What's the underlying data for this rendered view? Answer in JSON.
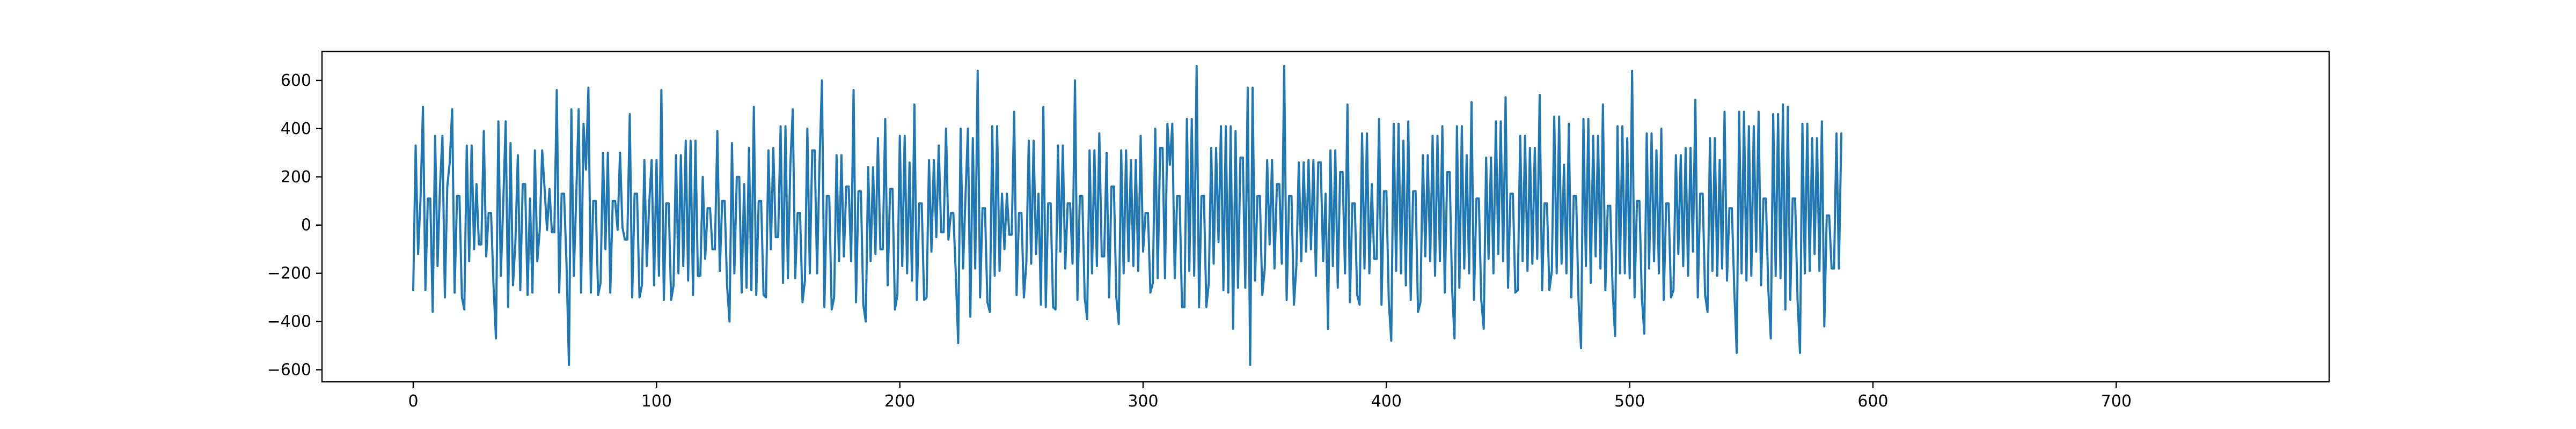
{
  "chart_data": {
    "type": "line",
    "title": "",
    "xlabel": "",
    "ylabel": "",
    "xlim": [
      -37.5,
      787.5
    ],
    "ylim": [
      -650,
      720
    ],
    "grid": false,
    "legend": "none",
    "x_ticks": [
      0,
      100,
      200,
      300,
      400,
      500,
      600,
      700
    ],
    "x_tick_labels": [
      "0",
      "100",
      "200",
      "300",
      "400",
      "500",
      "600",
      "700"
    ],
    "y_ticks": [
      -600,
      -400,
      -200,
      0,
      200,
      400,
      600
    ],
    "y_tick_labels": [
      "−600",
      "−400",
      "−200",
      "0",
      "200",
      "400",
      "600"
    ],
    "series": [
      {
        "color": "#1f77b4",
        "x_start": 0,
        "x_step": 1,
        "values": [
          -270,
          330,
          -120,
          110,
          490,
          -270,
          110,
          110,
          -360,
          370,
          -170,
          160,
          370,
          -300,
          160,
          260,
          480,
          -280,
          120,
          120,
          -300,
          -350,
          330,
          -150,
          330,
          -100,
          170,
          -80,
          -80,
          390,
          -130,
          50,
          50,
          -250,
          -470,
          430,
          -210,
          90,
          430,
          -340,
          340,
          -250,
          -70,
          290,
          -270,
          170,
          170,
          -290,
          110,
          -280,
          310,
          -150,
          -20,
          310,
          150,
          -20,
          150,
          -30,
          -30,
          560,
          -280,
          130,
          130,
          -160,
          -580,
          480,
          -210,
          120,
          480,
          -280,
          420,
          230,
          570,
          -280,
          100,
          100,
          -290,
          -240,
          300,
          -100,
          300,
          -280,
          100,
          100,
          -20,
          300,
          -10,
          -60,
          -60,
          460,
          -300,
          130,
          130,
          -300,
          -250,
          270,
          -170,
          90,
          270,
          -250,
          270,
          -210,
          560,
          -310,
          90,
          90,
          -310,
          -250,
          290,
          -200,
          290,
          -170,
          350,
          -230,
          350,
          -290,
          350,
          -210,
          -210,
          200,
          -140,
          70,
          70,
          -100,
          -100,
          390,
          -190,
          100,
          100,
          -250,
          -400,
          340,
          -200,
          200,
          200,
          -280,
          170,
          -260,
          320,
          -270,
          490,
          -290,
          100,
          100,
          -290,
          -300,
          310,
          -100,
          320,
          -50,
          -50,
          410,
          -240,
          410,
          -220,
          250,
          480,
          -220,
          50,
          50,
          -320,
          -230,
          400,
          -200,
          310,
          310,
          -200,
          260,
          600,
          -340,
          120,
          120,
          -350,
          -300,
          290,
          -150,
          290,
          -130,
          160,
          160,
          -150,
          560,
          -320,
          140,
          140,
          -330,
          -400,
          240,
          -150,
          240,
          -120,
          360,
          -100,
          -100,
          440,
          -250,
          150,
          150,
          -350,
          -290,
          370,
          -170,
          370,
          -200,
          260,
          -230,
          500,
          -310,
          90,
          90,
          -310,
          -300,
          270,
          -110,
          270,
          -50,
          330,
          -30,
          -30,
          400,
          -60,
          50,
          50,
          -200,
          -490,
          400,
          -180,
          120,
          400,
          -380,
          360,
          -180,
          640,
          -300,
          70,
          70,
          -320,
          -360,
          410,
          -210,
          410,
          -190,
          130,
          -100,
          130,
          -40,
          -40,
          470,
          -290,
          50,
          50,
          -300,
          -160,
          350,
          -160,
          350,
          -120,
          130,
          -330,
          490,
          -340,
          90,
          90,
          -340,
          -350,
          330,
          -110,
          330,
          -180,
          90,
          90,
          -160,
          600,
          -310,
          120,
          120,
          -300,
          -390,
          310,
          -200,
          310,
          -170,
          380,
          -130,
          -130,
          300,
          -300,
          160,
          160,
          -300,
          -410,
          310,
          -200,
          310,
          -150,
          270,
          -170,
          270,
          -190,
          370,
          -110,
          50,
          50,
          -280,
          -240,
          400,
          -220,
          320,
          320,
          -220,
          420,
          250,
          420,
          -220,
          120,
          120,
          -340,
          -340,
          440,
          -190,
          440,
          -210,
          660,
          -340,
          120,
          120,
          -340,
          -240,
          320,
          -160,
          320,
          -70,
          410,
          -270,
          410,
          -280,
          410,
          -430,
          390,
          -260,
          280,
          280,
          -260,
          570,
          -580,
          570,
          -230,
          120,
          120,
          -290,
          -180,
          270,
          -80,
          270,
          -180,
          170,
          170,
          -160,
          660,
          -310,
          120,
          120,
          -330,
          -170,
          260,
          -150,
          260,
          -110,
          270,
          -100,
          270,
          -210,
          260,
          260,
          -150,
          130,
          -430,
          310,
          -170,
          310,
          -260,
          220,
          220,
          -200,
          500,
          -320,
          90,
          90,
          -290,
          -330,
          380,
          -180,
          380,
          -200,
          170,
          -140,
          -140,
          440,
          -330,
          140,
          140,
          -320,
          -480,
          420,
          -190,
          420,
          -200,
          350,
          -250,
          430,
          -310,
          140,
          140,
          -360,
          -320,
          290,
          -130,
          290,
          -150,
          370,
          -210,
          370,
          -150,
          410,
          -280,
          220,
          220,
          -260,
          -470,
          410,
          -260,
          410,
          -180,
          290,
          -200,
          510,
          -310,
          110,
          110,
          -310,
          -430,
          280,
          -140,
          280,
          -200,
          430,
          -120,
          430,
          -150,
          530,
          -260,
          130,
          130,
          -280,
          -270,
          370,
          -150,
          370,
          -190,
          320,
          -160,
          320,
          -140,
          540,
          -270,
          90,
          90,
          -270,
          -190,
          450,
          -200,
          450,
          -160,
          250,
          -200,
          420,
          -300,
          120,
          120,
          -320,
          -510,
          440,
          -170,
          440,
          -240,
          370,
          -130,
          370,
          -180,
          500,
          -270,
          80,
          80,
          -270,
          -460,
          410,
          -200,
          410,
          -200,
          360,
          -220,
          640,
          -300,
          100,
          100,
          -300,
          -450,
          380,
          -180,
          380,
          -150,
          310,
          -200,
          400,
          -310,
          90,
          90,
          -300,
          -270,
          290,
          -120,
          290,
          -170,
          320,
          -210,
          320,
          -110,
          520,
          -300,
          130,
          130,
          -290,
          -360,
          360,
          -190,
          360,
          -210,
          270,
          -180,
          470,
          -230,
          70,
          70,
          -270,
          -530,
          470,
          -200,
          470,
          -230,
          410,
          -210,
          410,
          -110,
          470,
          -250,
          110,
          110,
          -270,
          -470,
          460,
          -210,
          460,
          -220,
          500,
          -350,
          490,
          -310,
          110,
          110,
          -310,
          -530,
          420,
          -200,
          420,
          -190,
          360,
          -120,
          360,
          -190,
          430,
          -420,
          40,
          40,
          -180,
          -180,
          380,
          -180,
          380
        ]
      }
    ]
  }
}
